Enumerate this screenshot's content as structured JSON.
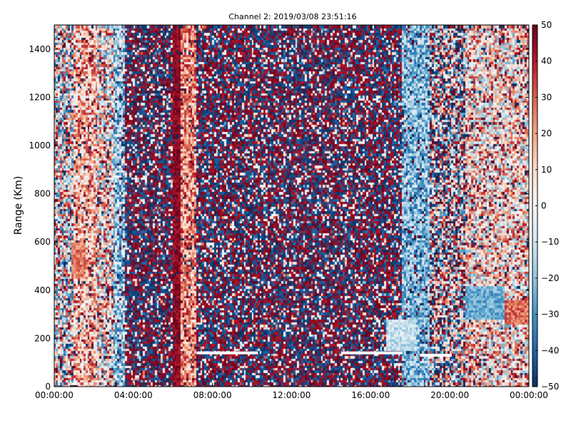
{
  "chart_data": {
    "type": "heatmap",
    "title": "Channel 2: 2019/03/08 23:51:16",
    "xlabel": "",
    "ylabel": "Range (Km)",
    "x_ticks": [
      "00:00:00",
      "04:00:00",
      "08:00:00",
      "12:00:00",
      "16:00:00",
      "20:00:00",
      "00:00:00"
    ],
    "xlim_hours": [
      0,
      24
    ],
    "ylim": [
      0,
      1500
    ],
    "y_ticks": [
      0,
      200,
      400,
      600,
      800,
      1000,
      1200,
      1400
    ],
    "colorbar": {
      "range": [
        -50,
        50
      ],
      "ticks": [
        -50,
        -40,
        -30,
        -20,
        -10,
        0,
        10,
        20,
        30,
        40,
        50
      ],
      "colormap": "RdBu_r",
      "colors": [
        "#053061",
        "#2166ac",
        "#4393c3",
        "#92c5de",
        "#d1e5f0",
        "#f7f7f7",
        "#fddbc7",
        "#f4a582",
        "#d6604d",
        "#b2182b",
        "#67001f"
      ]
    },
    "grid": false,
    "bands": [
      {
        "hours": [
          0.0,
          1.0
        ],
        "range_km": [
          0,
          1500
        ],
        "pattern": "mixed",
        "mean": 0,
        "spread": 45
      },
      {
        "hours": [
          1.0,
          2.2
        ],
        "range_km": [
          0,
          1500
        ],
        "pattern": "warm",
        "mean": 15,
        "spread": 25
      },
      {
        "hours": [
          2.2,
          3.0
        ],
        "range_km": [
          0,
          1500
        ],
        "pattern": "mixed",
        "mean": 5,
        "spread": 40
      },
      {
        "hours": [
          3.0,
          3.6
        ],
        "range_km": [
          0,
          1500
        ],
        "pattern": "cool",
        "mean": -18,
        "spread": 25
      },
      {
        "hours": [
          3.6,
          6.0
        ],
        "range_km": [
          0,
          1500
        ],
        "pattern": "noise",
        "mean": 0,
        "spread": 90
      },
      {
        "hours": [
          6.0,
          6.4
        ],
        "range_km": [
          0,
          1500
        ],
        "pattern": "strong-warm",
        "mean": 45,
        "spread": 6
      },
      {
        "hours": [
          6.4,
          7.2
        ],
        "range_km": [
          0,
          1500
        ],
        "pattern": "warm",
        "mean": 22,
        "spread": 20
      },
      {
        "hours": [
          7.2,
          17.6
        ],
        "range_km": [
          0,
          1500
        ],
        "pattern": "noise",
        "mean": 0,
        "spread": 100
      },
      {
        "hours": [
          17.6,
          19.0
        ],
        "range_km": [
          0,
          1500
        ],
        "pattern": "cool",
        "mean": -22,
        "spread": 18
      },
      {
        "hours": [
          19.0,
          20.8
        ],
        "range_km": [
          0,
          1500
        ],
        "pattern": "mixed",
        "mean": 0,
        "spread": 55
      },
      {
        "hours": [
          20.8,
          24.0
        ],
        "range_km": [
          0,
          1500
        ],
        "pattern": "warm-mixed",
        "mean": 8,
        "spread": 35
      }
    ],
    "features": [
      {
        "hours": [
          0.9,
          1.6
        ],
        "range_km": [
          450,
          600
        ],
        "mean": 25,
        "note": "warm blob"
      },
      {
        "hours": [
          20.8,
          22.8
        ],
        "range_km": [
          280,
          420
        ],
        "mean": -25,
        "note": "cool blob"
      },
      {
        "hours": [
          22.8,
          24.0
        ],
        "range_km": [
          260,
          360
        ],
        "mean": 28,
        "note": "warm blob"
      },
      {
        "hours": [
          16.8,
          18.3
        ],
        "range_km": [
          150,
          280
        ],
        "mean": -12,
        "note": "cool patch"
      }
    ],
    "blank_lines": [
      {
        "hours": [
          7.2,
          10.3
        ],
        "range_km": 140
      },
      {
        "hours": [
          14.5,
          17.6
        ],
        "range_km": 140
      },
      {
        "hours": [
          18.5,
          20.1
        ],
        "range_km": 130
      }
    ]
  }
}
